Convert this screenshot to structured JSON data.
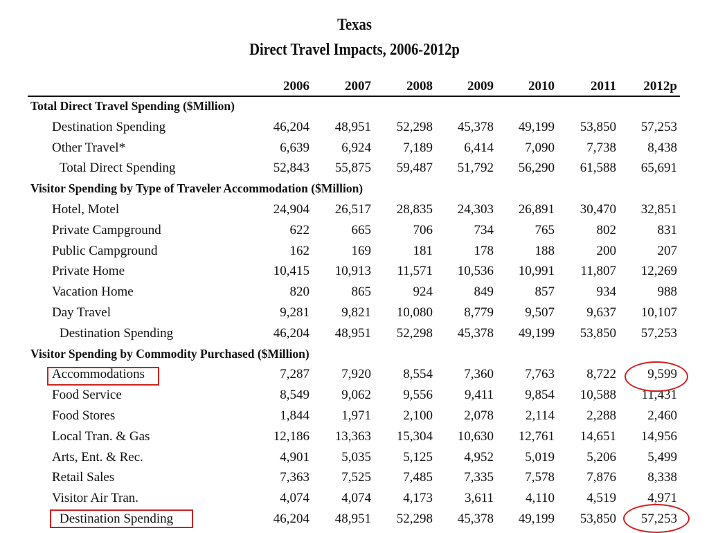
{
  "title": "Texas",
  "subtitle": "Direct Travel Impacts, 2006-2012p",
  "years": [
    "2006",
    "2007",
    "2008",
    "2009",
    "2010",
    "2011",
    "2012p"
  ],
  "rows": [
    {
      "type": "section",
      "label": "Total Direct Travel Spending ($Million)"
    },
    {
      "type": "item",
      "label": "Destination Spending",
      "values": [
        "46,204",
        "48,951",
        "52,298",
        "45,378",
        "49,199",
        "53,850",
        "57,253"
      ]
    },
    {
      "type": "item",
      "label": "Other Travel*",
      "values": [
        "6,639",
        "6,924",
        "7,189",
        "6,414",
        "7,090",
        "7,738",
        "8,438"
      ]
    },
    {
      "type": "subtotal",
      "label": "Total Direct Spending",
      "values": [
        "52,843",
        "55,875",
        "59,487",
        "51,792",
        "56,290",
        "61,588",
        "65,691"
      ]
    },
    {
      "type": "section",
      "label": "Visitor Spending by Type of Traveler Accommodation ($Million)"
    },
    {
      "type": "item",
      "label": "Hotel, Motel",
      "values": [
        "24,904",
        "26,517",
        "28,835",
        "24,303",
        "26,891",
        "30,470",
        "32,851"
      ]
    },
    {
      "type": "item",
      "label": "Private Campground",
      "values": [
        "622",
        "665",
        "706",
        "734",
        "765",
        "802",
        "831"
      ]
    },
    {
      "type": "item",
      "label": "Public Campground",
      "values": [
        "162",
        "169",
        "181",
        "178",
        "188",
        "200",
        "207"
      ]
    },
    {
      "type": "item",
      "label": "Private Home",
      "values": [
        "10,415",
        "10,913",
        "11,571",
        "10,536",
        "10,991",
        "11,807",
        "12,269"
      ]
    },
    {
      "type": "item",
      "label": "Vacation Home",
      "values": [
        "820",
        "865",
        "924",
        "849",
        "857",
        "934",
        "988"
      ]
    },
    {
      "type": "item",
      "label": "Day Travel",
      "values": [
        "9,281",
        "9,821",
        "10,080",
        "8,779",
        "9,507",
        "9,637",
        "10,107"
      ]
    },
    {
      "type": "subtotal",
      "label": "Destination Spending",
      "values": [
        "46,204",
        "48,951",
        "52,298",
        "45,378",
        "49,199",
        "53,850",
        "57,253"
      ]
    },
    {
      "type": "section",
      "label": "Visitor Spending by Commodity Purchased ($Million)"
    },
    {
      "type": "item",
      "label": "Accommodations",
      "values": [
        "7,287",
        "7,920",
        "8,554",
        "7,360",
        "7,763",
        "8,722",
        "9,599"
      ]
    },
    {
      "type": "item",
      "label": "Food Service",
      "values": [
        "8,549",
        "9,062",
        "9,556",
        "9,411",
        "9,854",
        "10,588",
        "11,431"
      ]
    },
    {
      "type": "item",
      "label": "Food Stores",
      "values": [
        "1,844",
        "1,971",
        "2,100",
        "2,078",
        "2,114",
        "2,288",
        "2,460"
      ]
    },
    {
      "type": "item",
      "label": "Local Tran. & Gas",
      "values": [
        "12,186",
        "13,363",
        "15,304",
        "10,630",
        "12,761",
        "14,651",
        "14,956"
      ]
    },
    {
      "type": "item",
      "label": "Arts, Ent. & Rec.",
      "values": [
        "4,901",
        "5,035",
        "5,125",
        "4,952",
        "5,019",
        "5,206",
        "5,499"
      ]
    },
    {
      "type": "item",
      "label": "Retail Sales",
      "values": [
        "7,363",
        "7,525",
        "7,485",
        "7,335",
        "7,578",
        "7,876",
        "8,338"
      ]
    },
    {
      "type": "item",
      "label": "Visitor Air Tran.",
      "values": [
        "4,074",
        "4,074",
        "4,173",
        "3,611",
        "4,110",
        "4,519",
        "4,971"
      ]
    },
    {
      "type": "subtotal",
      "label": "Destination Spending",
      "values": [
        "46,204",
        "48,951",
        "52,298",
        "45,378",
        "49,199",
        "53,850",
        "57,253"
      ]
    }
  ],
  "annotation_color": "#d0201f"
}
